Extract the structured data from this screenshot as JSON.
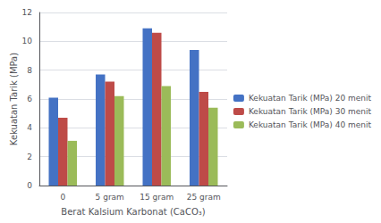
{
  "chart_data": {
    "type": "bar",
    "categories": [
      "0",
      "5 gram",
      "15 gram",
      "25 gram"
    ],
    "series": [
      {
        "name": "Kekuatan Tarik (MPa) 20 menit",
        "color": "#4472C4",
        "values": [
          6.1,
          7.7,
          10.9,
          9.4
        ]
      },
      {
        "name": "Kekuatan Tarik (MPa) 30 menit",
        "color": "#BE4B48",
        "values": [
          4.7,
          7.2,
          10.6,
          6.5
        ]
      },
      {
        "name": "Kekuatan Tarik (MPa) 40 menit",
        "color": "#9BBB59",
        "values": [
          3.1,
          6.2,
          6.9,
          5.4
        ]
      }
    ],
    "xlabel": "Berat Kalsium Karbonat (CaCO₃)",
    "ylabel": "Kekuatan Tarik (MPa)",
    "ylim": [
      0,
      12
    ],
    "yticks": [
      0,
      2,
      4,
      6,
      8,
      10,
      12
    ],
    "grid": true,
    "legend": "right"
  }
}
